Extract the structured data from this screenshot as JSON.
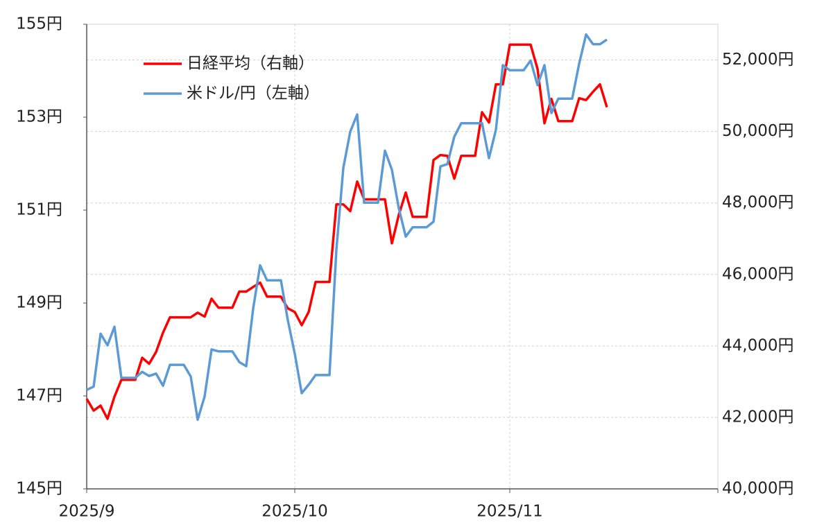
{
  "chart_data": {
    "type": "line",
    "categories": [
      "2025/9",
      null,
      null,
      null,
      null,
      null,
      null,
      null,
      null,
      null,
      null,
      null,
      null,
      null,
      null,
      null,
      null,
      null,
      null,
      null,
      null,
      null,
      null,
      null,
      null,
      null,
      null,
      null,
      null,
      null,
      "2025/10",
      null,
      null,
      null,
      null,
      null,
      null,
      null,
      null,
      null,
      null,
      null,
      null,
      null,
      null,
      null,
      null,
      null,
      null,
      null,
      null,
      null,
      null,
      null,
      null,
      null,
      null,
      null,
      null,
      null,
      null,
      "2025/11",
      null,
      null,
      null,
      null,
      null,
      null,
      null,
      null,
      null,
      null,
      null,
      null,
      null,
      null,
      null,
      null,
      null,
      null,
      null,
      null,
      null,
      null,
      null,
      null,
      null,
      null,
      null,
      null,
      null
    ],
    "series": [
      {
        "name": "日経平均（右軸）",
        "color": "#ff0000",
        "axis": "y2",
        "values": [
          42520,
          42190,
          42330,
          41960,
          42580,
          43050,
          43050,
          43050,
          43670,
          43500,
          43830,
          44370,
          44800,
          44800,
          44800,
          44800,
          44930,
          44820,
          45320,
          45070,
          45070,
          45070,
          45520,
          45520,
          45650,
          45770,
          45380,
          45380,
          45380,
          45050,
          44950,
          44580,
          44950,
          45790,
          45790,
          45790,
          47960,
          47960,
          47770,
          48600,
          48100,
          48100,
          48100,
          48100,
          46870,
          47670,
          48290,
          47610,
          47610,
          47610,
          49200,
          49340,
          49320,
          48680,
          49320,
          49320,
          49320,
          50540,
          50250,
          51320,
          51320,
          52430,
          52430,
          52430,
          52430,
          51750,
          50230,
          50910,
          50290,
          50290,
          50290,
          50930,
          50880,
          51110,
          51320,
          50680,
          null,
          null,
          null,
          null,
          null,
          null,
          null,
          null,
          null,
          null,
          null,
          null,
          null,
          null,
          null
        ]
      },
      {
        "name": "米ドル/円（左軸）",
        "color": "#5b9bd5",
        "axis": "y",
        "values": [
          147.13,
          147.2,
          148.34,
          148.09,
          148.49,
          147.39,
          147.39,
          147.39,
          147.52,
          147.43,
          147.48,
          147.22,
          147.67,
          147.67,
          147.67,
          147.42,
          146.49,
          146.99,
          148.0,
          147.96,
          147.96,
          147.96,
          147.73,
          147.64,
          148.88,
          149.81,
          149.49,
          149.49,
          149.49,
          148.63,
          147.91,
          147.06,
          147.24,
          147.45,
          147.45,
          147.45,
          150.15,
          151.91,
          152.69,
          153.06,
          151.16,
          151.16,
          151.16,
          152.28,
          151.87,
          151.04,
          150.43,
          150.63,
          150.63,
          150.63,
          150.75,
          151.94,
          151.99,
          152.58,
          152.87,
          152.87,
          152.87,
          152.87,
          152.12,
          152.73,
          154.12,
          154.01,
          154.01,
          154.01,
          154.22,
          153.69,
          154.12,
          153.09,
          153.4,
          153.4,
          153.4,
          154.15,
          154.78,
          154.57,
          154.57,
          154.67,
          null,
          null,
          null,
          null,
          null,
          null,
          null,
          null,
          null,
          null,
          null,
          null,
          null,
          null,
          null
        ]
      }
    ],
    "ylim": [
      145,
      155
    ],
    "yticks": [
      {
        "value": 145,
        "label": "145円"
      },
      {
        "value": 147,
        "label": "147円"
      },
      {
        "value": 149,
        "label": "149円"
      },
      {
        "value": 151,
        "label": "151円"
      },
      {
        "value": 153,
        "label": "153円"
      },
      {
        "value": 155,
        "label": "155円"
      }
    ],
    "y2lim": [
      40000,
      53000
    ],
    "y2ticks": [
      {
        "value": 40000,
        "label": "40,000円"
      },
      {
        "value": 42000,
        "label": "42,000円"
      },
      {
        "value": 44000,
        "label": "44,000円"
      },
      {
        "value": 46000,
        "label": "46,000円"
      },
      {
        "value": 48000,
        "label": "48,000円"
      },
      {
        "value": 50000,
        "label": "50,000円"
      },
      {
        "value": 52000,
        "label": "52,000円"
      }
    ],
    "y2color": "#ff0000",
    "grid": true,
    "legend": "upper left"
  }
}
